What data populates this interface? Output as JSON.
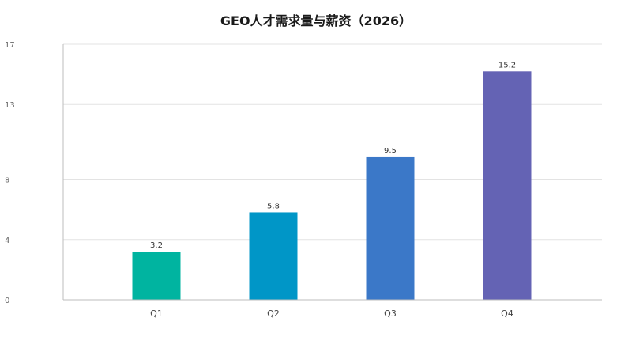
{
  "chart_data": {
    "type": "bar",
    "title": "GEO人才需求量与薪资（2026）",
    "xlabel": "",
    "ylabel": "",
    "categories": [
      "Q1",
      "Q2",
      "Q3",
      "Q4"
    ],
    "values": [
      3.2,
      5.8,
      9.5,
      15.2
    ],
    "data_labels": [
      "3.2",
      "5.8",
      "9.5",
      "15.2"
    ],
    "ylim": [
      0,
      17
    ],
    "yticks": [
      0,
      4,
      8,
      13,
      17
    ],
    "ytick_labels": [
      "0",
      "4",
      "8",
      "13",
      "17"
    ],
    "grid": true,
    "legend": "none",
    "colors": [
      "#00b4a0",
      "#0096c7",
      "#3b78c8",
      "#6463b4"
    ]
  }
}
